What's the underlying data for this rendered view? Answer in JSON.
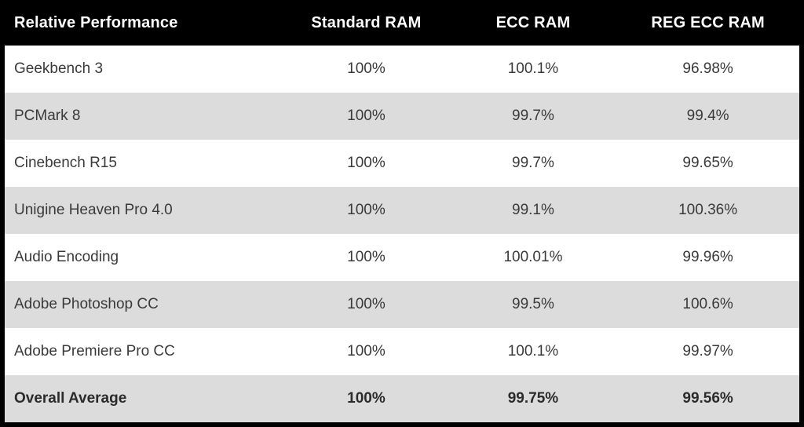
{
  "table": {
    "columns": [
      "Relative Performance",
      "Standard RAM",
      "ECC RAM",
      "REG ECC RAM"
    ],
    "rows": [
      {
        "label": "Geekbench 3",
        "values": [
          "100%",
          "100.1%",
          "96.98%"
        ],
        "bold": false
      },
      {
        "label": "PCMark 8",
        "values": [
          "100%",
          "99.7%",
          "99.4%"
        ],
        "bold": false
      },
      {
        "label": "Cinebench R15",
        "values": [
          "100%",
          "99.7%",
          "99.65%"
        ],
        "bold": false
      },
      {
        "label": "Unigine Heaven Pro 4.0",
        "values": [
          "100%",
          "99.1%",
          "100.36%"
        ],
        "bold": false
      },
      {
        "label": "Audio Encoding",
        "values": [
          "100%",
          "100.01%",
          "99.96%"
        ],
        "bold": false
      },
      {
        "label": "Adobe Photoshop CC",
        "values": [
          "100%",
          "99.5%",
          "100.6%"
        ],
        "bold": false
      },
      {
        "label": "Adobe Premiere Pro CC",
        "values": [
          "100%",
          "100.1%",
          "99.97%"
        ],
        "bold": false
      },
      {
        "label": "Overall Average",
        "values": [
          "100%",
          "99.75%",
          "99.56%"
        ],
        "bold": true
      }
    ]
  },
  "chart_data": {
    "type": "table",
    "title": "Relative Performance",
    "columns": [
      "Relative Performance",
      "Standard RAM",
      "ECC RAM",
      "REG ECC RAM"
    ],
    "categories": [
      "Geekbench 3",
      "PCMark 8",
      "Cinebench R15",
      "Unigine Heaven Pro 4.0",
      "Audio Encoding",
      "Adobe Photoshop CC",
      "Adobe Premiere Pro CC",
      "Overall Average"
    ],
    "series": [
      {
        "name": "Standard RAM",
        "values": [
          100,
          100,
          100,
          100,
          100,
          100,
          100,
          100
        ]
      },
      {
        "name": "ECC RAM",
        "values": [
          100.1,
          99.7,
          99.7,
          99.1,
          100.01,
          99.5,
          100.1,
          99.75
        ]
      },
      {
        "name": "REG ECC RAM",
        "values": [
          96.98,
          99.4,
          99.65,
          100.36,
          99.96,
          100.6,
          99.97,
          99.56
        ]
      }
    ],
    "units": "%"
  },
  "colors": {
    "header_bg": "#000000",
    "header_text": "#ffffff",
    "row_bg": "#ffffff",
    "row_alt_bg": "#dcdcdc",
    "body_text": "#3a3a3a",
    "border": "#000000"
  }
}
